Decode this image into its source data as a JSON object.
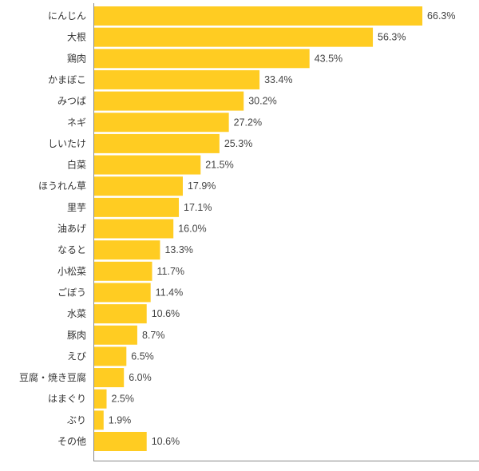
{
  "chart_data": {
    "type": "bar",
    "orientation": "horizontal",
    "categories": [
      "にんじん",
      "大根",
      "鶏肉",
      "かまぼこ",
      "みつば",
      "ネギ",
      "しいたけ",
      "白菜",
      "ほうれん草",
      "里芋",
      "油あげ",
      "なると",
      "小松菜",
      "ごぼう",
      "水菜",
      "豚肉",
      "えび",
      "豆腐・焼き豆腐",
      "はまぐり",
      "ぶり",
      "その他"
    ],
    "values": [
      66.3,
      56.3,
      43.5,
      33.4,
      30.2,
      27.2,
      25.3,
      21.5,
      17.9,
      17.1,
      16.0,
      13.3,
      11.7,
      11.4,
      10.6,
      8.7,
      6.5,
      6.0,
      2.5,
      1.9,
      10.6
    ],
    "value_labels": [
      "66.3%",
      "56.3%",
      "43.5%",
      "33.4%",
      "30.2%",
      "27.2%",
      "25.3%",
      "21.5%",
      "17.9%",
      "17.1%",
      "16.0%",
      "13.3%",
      "11.7%",
      "11.4%",
      "10.6%",
      "8.7%",
      "6.5%",
      "6.0%",
      "2.5%",
      "1.9%",
      "10.6%"
    ],
    "unit": "%",
    "xlim": [
      0,
      100
    ],
    "bar_color": "#FFCC22",
    "axis_color": "#8a8a8a",
    "grid": false,
    "legend": "none"
  }
}
